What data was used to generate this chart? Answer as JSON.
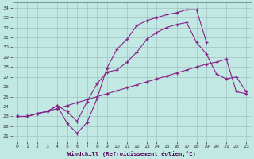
{
  "xlabel": "Windchill (Refroidissement éolien,°C)",
  "bg_color": "#c2e8e4",
  "line_color": "#882288",
  "grid_color": "#99bbba",
  "xlim_min": -0.5,
  "xlim_max": 23.5,
  "ylim_min": 20.5,
  "ylim_max": 34.5,
  "xticks": [
    0,
    1,
    2,
    3,
    4,
    5,
    6,
    7,
    8,
    9,
    10,
    11,
    12,
    13,
    14,
    15,
    16,
    17,
    18,
    19,
    20,
    21,
    22,
    23
  ],
  "yticks": [
    21,
    22,
    23,
    24,
    25,
    26,
    27,
    28,
    29,
    30,
    31,
    32,
    33,
    34
  ],
  "line1_x": [
    0,
    1,
    2,
    3,
    4,
    5,
    6,
    7,
    8,
    9,
    10,
    11,
    12,
    13,
    14,
    15,
    16,
    17,
    18,
    19
  ],
  "line1_y": [
    23.0,
    23.0,
    23.3,
    23.5,
    24.1,
    22.3,
    21.3,
    22.4,
    24.8,
    27.9,
    29.8,
    30.8,
    32.2,
    32.7,
    33.0,
    33.3,
    33.5,
    33.8,
    33.8,
    30.5
  ],
  "line2_x": [
    0,
    1,
    2,
    3,
    4,
    5,
    6,
    7,
    8,
    9,
    10,
    11,
    12,
    13,
    14,
    15,
    16,
    17,
    18,
    19,
    20,
    21,
    22,
    23
  ],
  "line2_y": [
    23.0,
    23.0,
    23.3,
    23.5,
    24.1,
    23.5,
    22.5,
    24.5,
    26.3,
    27.5,
    27.7,
    28.5,
    29.5,
    30.8,
    31.5,
    32.0,
    32.3,
    32.5,
    30.5,
    29.3,
    27.3,
    26.8,
    27.0,
    25.5
  ],
  "line3_x": [
    0,
    1,
    2,
    3,
    4,
    5,
    6,
    7,
    8,
    9,
    10,
    11,
    12,
    13,
    14,
    15,
    16,
    17,
    18,
    19,
    20,
    21,
    22,
    23
  ],
  "line3_y": [
    23.0,
    23.0,
    23.3,
    23.5,
    23.8,
    24.1,
    24.4,
    24.7,
    25.0,
    25.3,
    25.6,
    25.9,
    26.2,
    26.5,
    26.8,
    27.1,
    27.4,
    27.7,
    28.0,
    28.3,
    28.5,
    28.8,
    25.5,
    25.3
  ]
}
